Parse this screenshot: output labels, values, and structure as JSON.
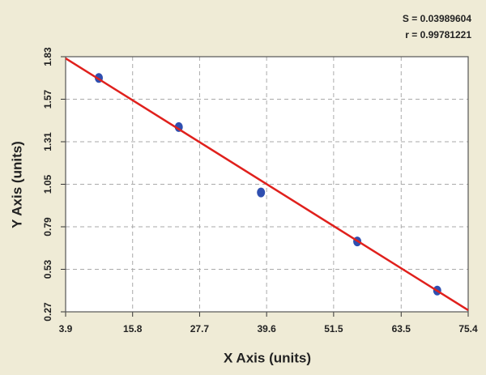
{
  "chart_data": {
    "type": "scatter",
    "annotations": [
      "S = 0.03989604",
      "r = 0.99781221"
    ],
    "x_label": "X Axis (units)",
    "y_label": "Y Axis (units)",
    "series": [
      {
        "type": "scatter",
        "color": "#2f4fb0",
        "x": [
          9.8,
          24.0,
          38.6,
          55.7,
          69.9
        ],
        "values": [
          1.7,
          1.4,
          1.0,
          0.7,
          0.4
        ]
      },
      {
        "type": "line",
        "color": "#e0201c",
        "x": [
          3.9,
          75.4
        ],
        "values": [
          1.82,
          0.28
        ]
      }
    ],
    "xlim": [
      3.9,
      75.4
    ],
    "xticks": [
      3.9,
      15.8,
      27.7,
      39.6,
      51.5,
      63.5,
      75.4
    ],
    "ylim": [
      0.27,
      1.83
    ],
    "yticks": [
      0.27,
      0.53,
      0.79,
      1.05,
      1.31,
      1.57,
      1.83
    ],
    "grid": true
  }
}
